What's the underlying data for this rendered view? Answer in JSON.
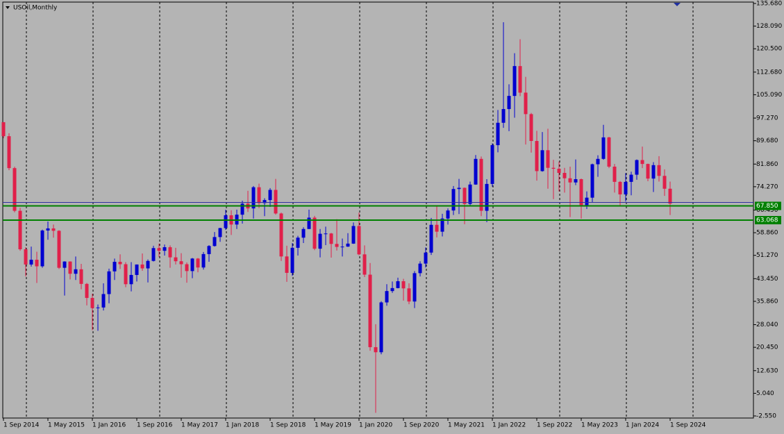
{
  "chart_data": {
    "type": "candlestick",
    "title": "USOil,Monthly",
    "x": [
      "1 Sep 2014",
      null,
      null,
      null,
      null,
      null,
      null,
      null,
      "1 May 2015",
      null,
      null,
      null,
      null,
      null,
      null,
      null,
      "1 Jan 2016",
      null,
      null,
      null,
      null,
      null,
      null,
      null,
      "1 Sep 2016",
      null,
      null,
      null,
      null,
      null,
      null,
      null,
      "1 May 2017",
      null,
      null,
      null,
      null,
      null,
      null,
      null,
      "1 Jan 2018",
      null,
      null,
      null,
      null,
      null,
      null,
      null,
      "1 Sep 2018",
      null,
      null,
      null,
      null,
      null,
      null,
      null,
      "1 May 2019",
      null,
      null,
      null,
      null,
      null,
      null,
      null,
      "1 Jan 2020",
      null,
      null,
      null,
      null,
      null,
      null,
      null,
      "1 Sep 2020",
      null,
      null,
      null,
      null,
      null,
      null,
      null,
      "1 May 2021",
      null,
      null,
      null,
      null,
      null,
      null,
      null,
      "1 Jan 2022",
      null,
      null,
      null,
      null,
      null,
      null,
      null,
      "1 Sep 2022",
      null,
      null,
      null,
      null,
      null,
      null,
      null,
      "1 May 2023",
      null,
      null,
      null,
      null,
      null,
      null,
      null,
      "1 Jan 2024",
      null,
      null,
      null,
      null,
      null,
      null,
      null,
      "1 Sep 2024"
    ],
    "open": [
      95.9,
      91.2,
      80.5,
      66.2,
      53.3,
      48.2,
      49.8,
      47.6,
      59.6,
      60.3,
      59.5,
      47.1,
      49.2,
      45.1,
      46.6,
      41.7,
      37.0,
      33.6,
      33.8,
      38.3,
      45.9,
      49.1,
      48.3,
      41.6,
      44.7,
      48.2,
      46.9,
      49.4,
      53.7,
      52.8,
      54.0,
      50.6,
      49.3,
      48.3,
      46.0,
      50.2,
      47.2,
      51.7,
      54.4,
      57.4,
      60.4,
      64.7,
      61.6,
      64.9,
      68.6,
      67.0,
      74.1,
      68.8,
      69.8,
      73.2,
      65.3,
      50.9,
      45.4,
      53.8,
      57.2,
      60.1,
      63.9,
      53.5,
      58.5,
      58.6,
      55.1,
      54.1,
      54.2,
      55.2,
      61.1,
      51.6,
      44.8,
      20.5,
      18.8,
      35.5,
      39.3,
      40.3,
      42.6,
      40.2,
      35.8,
      45.3,
      48.5,
      52.2,
      61.5,
      59.2,
      63.6,
      66.3,
      73.5,
      73.9,
      68.5,
      75.0,
      83.6,
      66.2,
      75.2,
      88.2,
      95.7,
      100.3,
      104.7,
      114.7,
      105.8,
      98.6,
      89.6,
      79.5,
      86.5,
      80.6,
      80.3,
      78.9,
      77.1,
      75.7,
      76.8,
      68.1,
      70.6,
      81.8,
      83.6,
      90.8,
      81.0,
      75.9,
      71.7,
      75.9,
      78.3,
      83.2,
      81.9,
      77.0,
      81.5,
      77.9,
      73.6
    ],
    "high": [
      95.9,
      92.2,
      81.0,
      67.2,
      54.0,
      54.2,
      52.5,
      59.9,
      62.6,
      61.6,
      59.7,
      49.3,
      49.3,
      50.9,
      48.4,
      42.0,
      38.4,
      34.8,
      41.9,
      46.8,
      50.2,
      51.6,
      49.0,
      49.0,
      48.2,
      51.9,
      49.9,
      54.5,
      55.2,
      54.9,
      54.6,
      53.8,
      52.0,
      48.9,
      50.4,
      50.4,
      52.4,
      54.7,
      59.1,
      60.5,
      66.6,
      66.4,
      66.6,
      69.6,
      72.9,
      74.5,
      75.3,
      70.4,
      73.8,
      76.9,
      65.6,
      54.5,
      55.4,
      57.8,
      60.7,
      66.6,
      64.5,
      60.1,
      60.9,
      58.8,
      63.4,
      56.9,
      58.7,
      62.3,
      65.6,
      54.6,
      48.7,
      28.2,
      35.9,
      41.6,
      42.5,
      43.8,
      43.4,
      41.9,
      46.0,
      49.3,
      53.9,
      63.8,
      67.9,
      65.2,
      67.0,
      74.5,
      76.9,
      74.0,
      76.0,
      84.9,
      84.4,
      76.8,
      88.8,
      100.0,
      129.4,
      108.6,
      119.0,
      123.7,
      111.1,
      99.0,
      93.0,
      92.6,
      93.7,
      83.3,
      82.7,
      80.6,
      81.0,
      83.4,
      77.0,
      72.7,
      82.0,
      84.8,
      95.0,
      91.0,
      81.9,
      76.2,
      78.8,
      79.3,
      83.4,
      87.7,
      82.0,
      82.5,
      84.5,
      80.1,
      76.0
    ],
    "low": [
      90.5,
      79.8,
      65.7,
      52.8,
      44.2,
      47.5,
      42.0,
      47.1,
      56.5,
      57.2,
      46.7,
      37.8,
      43.2,
      43.0,
      39.9,
      34.5,
      26.2,
      26.0,
      32.8,
      35.2,
      43.0,
      46.7,
      40.6,
      39.2,
      42.5,
      46.1,
      42.2,
      49.2,
      50.7,
      51.2,
      47.1,
      48.2,
      43.8,
      42.1,
      43.6,
      45.6,
      46.5,
      49.1,
      54.2,
      55.8,
      59.8,
      58.1,
      60.1,
      61.9,
      65.8,
      63.6,
      67.1,
      64.4,
      67.5,
      64.9,
      49.4,
      42.4,
      44.4,
      51.2,
      55.4,
      60.1,
      53.0,
      50.6,
      54.7,
      50.5,
      52.9,
      50.9,
      54.1,
      55.1,
      51.3,
      44.0,
      19.3,
      -1.5,
      18.1,
      34.4,
      38.7,
      40.2,
      36.1,
      34.9,
      33.6,
      44.2,
      47.2,
      51.4,
      57.3,
      57.6,
      61.6,
      64.8,
      65.1,
      61.7,
      67.6,
      74.9,
      64.4,
      62.4,
      74.3,
      85.8,
      94.0,
      92.9,
      97.4,
      104.6,
      88.4,
      85.7,
      76.3,
      79.3,
      73.6,
      70.1,
      72.7,
      72.3,
      64.1,
      74.8,
      63.6,
      66.8,
      69.0,
      77.6,
      83.3,
      80.5,
      72.3,
      67.7,
      69.3,
      71.4,
      76.6,
      80.5,
      76.1,
      72.5,
      76.0,
      71.2,
      64.8
    ],
    "close": [
      91.2,
      80.5,
      66.2,
      53.3,
      48.2,
      49.8,
      47.6,
      59.6,
      60.3,
      59.5,
      47.1,
      49.2,
      45.1,
      46.6,
      41.7,
      37.0,
      33.6,
      33.8,
      38.3,
      45.9,
      49.1,
      48.3,
      41.6,
      44.7,
      48.2,
      46.9,
      49.4,
      53.7,
      52.8,
      54.0,
      50.6,
      49.3,
      48.3,
      46.0,
      50.2,
      47.2,
      51.7,
      54.4,
      57.4,
      60.4,
      64.7,
      61.6,
      64.9,
      68.6,
      67.0,
      74.1,
      68.8,
      69.8,
      73.2,
      65.3,
      50.9,
      45.4,
      53.8,
      57.2,
      60.1,
      63.9,
      53.5,
      58.5,
      58.6,
      55.1,
      54.1,
      54.2,
      55.2,
      61.1,
      51.6,
      44.8,
      20.5,
      18.8,
      35.5,
      39.3,
      40.3,
      42.6,
      40.2,
      35.8,
      45.3,
      48.5,
      52.2,
      61.5,
      59.2,
      63.6,
      66.3,
      73.5,
      73.9,
      68.5,
      75.0,
      83.6,
      66.2,
      75.2,
      88.2,
      95.7,
      100.3,
      104.7,
      114.7,
      105.8,
      98.6,
      89.6,
      79.5,
      86.5,
      80.6,
      80.3,
      78.9,
      77.1,
      75.7,
      76.8,
      68.1,
      70.6,
      81.8,
      83.6,
      90.8,
      81.0,
      75.9,
      71.7,
      75.9,
      78.3,
      83.2,
      81.9,
      77.0,
      81.5,
      77.9,
      73.6,
      68.6
    ],
    "up_color": "#0000d0",
    "down_color": "#e0204a",
    "ylim": [
      -2.55,
      135.68
    ],
    "yticks": [
      {
        "value": 135.68,
        "label": "135.680"
      },
      {
        "value": 128.09,
        "label": "128.090"
      },
      {
        "value": 120.5,
        "label": "120.500"
      },
      {
        "value": 112.68,
        "label": "112.680"
      },
      {
        "value": 105.09,
        "label": "105.090"
      },
      {
        "value": 97.27,
        "label": "97.270"
      },
      {
        "value": 89.68,
        "label": "89.680"
      },
      {
        "value": 81.86,
        "label": "81.860"
      },
      {
        "value": 74.27,
        "label": "74.270"
      },
      {
        "value": 66.45,
        "label": "66.450"
      },
      {
        "value": 58.86,
        "label": "58.860"
      },
      {
        "value": 51.27,
        "label": "51.270"
      },
      {
        "value": 43.45,
        "label": "43.450"
      },
      {
        "value": 35.86,
        "label": "35.860"
      },
      {
        "value": 28.04,
        "label": "28.040"
      },
      {
        "value": 20.45,
        "label": "20.450"
      },
      {
        "value": 12.63,
        "label": "12.630"
      },
      {
        "value": 5.04,
        "label": "5.040"
      },
      {
        "value": -2.55,
        "label": "-2.550"
      }
    ],
    "price_line": {
      "value": 69.0,
      "color": "#3030a0"
    },
    "levels": [
      {
        "value": 67.85,
        "label": "67.850",
        "color": "#008000"
      },
      {
        "value": 63.068,
        "label": "63.068",
        "color": "#008000"
      }
    ]
  }
}
